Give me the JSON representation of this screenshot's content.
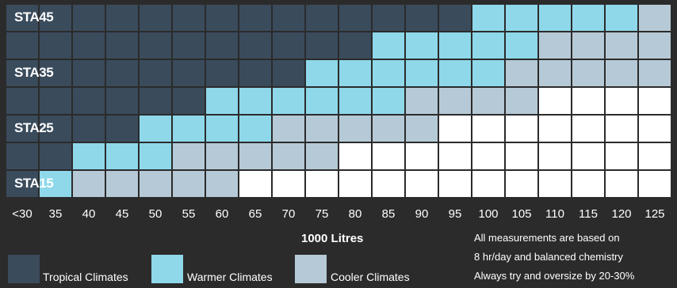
{
  "chart_data": {
    "type": "heatmap",
    "rows": [
      "STA45",
      "",
      "STA35",
      "",
      "STA25",
      "",
      "STA15"
    ],
    "x_ticks": [
      "<30",
      "35",
      "40",
      "45",
      "50",
      "55",
      "60",
      "65",
      "70",
      "75",
      "80",
      "85",
      "90",
      "95",
      "100",
      "105",
      "110",
      "115",
      "120",
      "125"
    ],
    "xlabel": "1000 Litres",
    "legend": [
      {
        "key": "tropical",
        "label": "Tropical Climates",
        "color": "#3a4b5c"
      },
      {
        "key": "warmer",
        "label": "Warmer Climates",
        "color": "#8ed8ea"
      },
      {
        "key": "cooler",
        "label": "Cooler Climates",
        "color": "#b6c9d6"
      }
    ],
    "empty_color": "#ffffff",
    "band_ends": [
      {
        "tropical": 14,
        "warmer": 19,
        "cooler": 20
      },
      {
        "tropical": 11,
        "warmer": 16,
        "cooler": 20
      },
      {
        "tropical": 9,
        "warmer": 15,
        "cooler": 20
      },
      {
        "tropical": 6,
        "warmer": 12,
        "cooler": 16
      },
      {
        "tropical": 4,
        "warmer": 8,
        "cooler": 13
      },
      {
        "tropical": 2,
        "warmer": 5,
        "cooler": 10
      },
      {
        "tropical": 1,
        "warmer": 2,
        "cooler": 7
      }
    ]
  },
  "notes": [
    "All measurements are based on",
    "8 hr/day and balanced chemistry",
    "Always try and oversize by 20-30%"
  ]
}
